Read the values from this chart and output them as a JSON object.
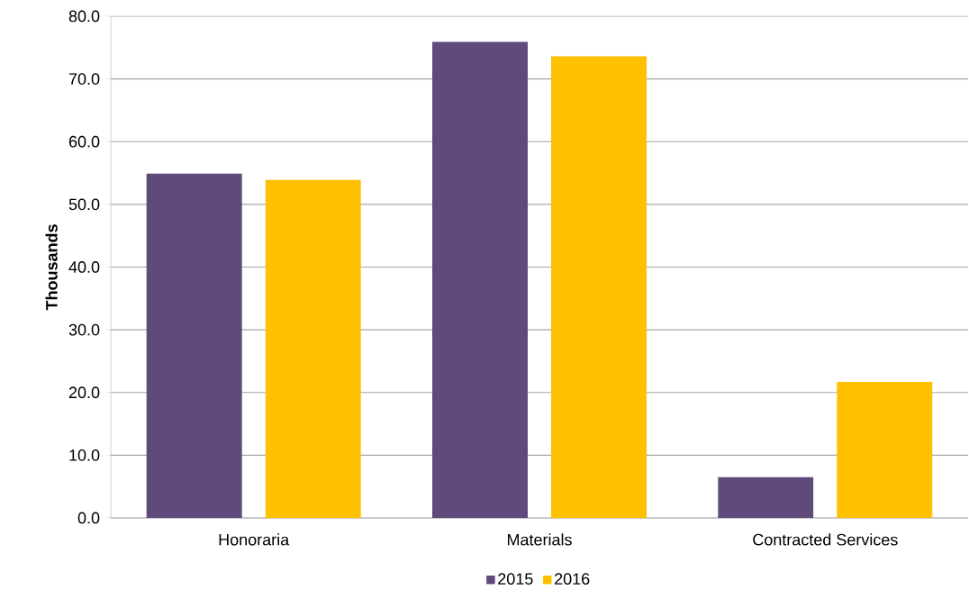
{
  "chart_data": {
    "type": "bar",
    "ylabel": "Thousands",
    "categories": [
      "Honoraria",
      "Materials",
      "Contracted Services"
    ],
    "series": [
      {
        "name": "2015",
        "color": "#604a7b",
        "values": [
          54.9,
          75.9,
          6.5
        ]
      },
      {
        "name": "2016",
        "color": "#ffc000",
        "values": [
          53.9,
          73.6,
          21.7
        ]
      }
    ],
    "ylim": [
      0,
      80
    ],
    "yticks": [
      {
        "value": 0,
        "label": "0.0"
      },
      {
        "value": 10,
        "label": "10.0"
      },
      {
        "value": 20,
        "label": "20.0"
      },
      {
        "value": 30,
        "label": "30.0"
      },
      {
        "value": 40,
        "label": "40.0"
      },
      {
        "value": 50,
        "label": "50.0"
      },
      {
        "value": 60,
        "label": "60.0"
      },
      {
        "value": 70,
        "label": "70.0"
      },
      {
        "value": 80,
        "label": "80.0"
      }
    ],
    "grid": "y",
    "legend": "bottom"
  }
}
